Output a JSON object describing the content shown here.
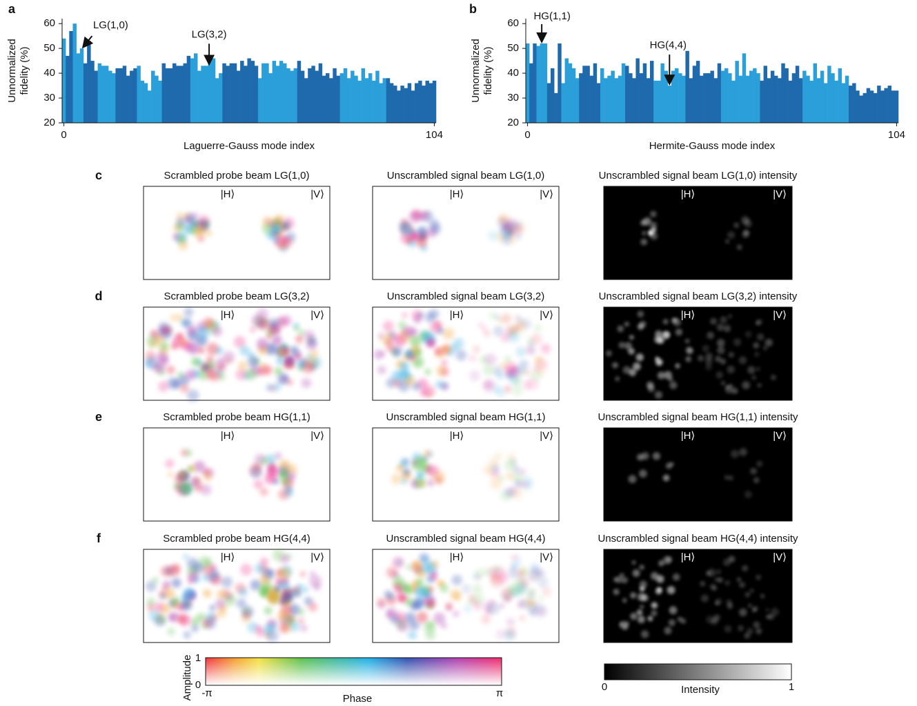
{
  "chart_data": [
    {
      "type": "bar",
      "panel": "a",
      "ylabel": [
        "Unnormalized",
        "fidelity (%)"
      ],
      "xlabel": "Laguerre-Gauss mode index",
      "x": [
        0,
        1,
        2,
        3,
        4,
        5,
        6,
        7,
        8,
        9,
        10,
        11,
        12,
        13,
        14,
        15,
        16,
        17,
        18,
        19,
        20,
        21,
        22,
        23,
        24,
        25,
        26,
        27,
        28,
        29,
        30,
        31,
        32,
        33,
        34,
        35,
        36,
        37,
        38,
        39,
        40,
        41,
        42,
        43,
        44,
        45,
        46,
        47,
        48,
        49,
        50,
        51,
        52,
        53,
        54,
        55,
        56,
        57,
        58,
        59,
        60,
        61,
        62,
        63,
        64,
        65,
        66,
        67,
        68,
        69,
        70,
        71,
        72,
        73,
        74,
        75,
        76,
        77,
        78,
        79,
        80,
        81,
        82,
        83,
        84,
        85,
        86,
        87,
        88,
        89,
        90,
        91,
        92,
        93,
        94,
        95,
        96,
        97,
        98,
        99,
        100,
        101,
        102,
        103,
        104
      ],
      "values": [
        54,
        47,
        57,
        60,
        48,
        50,
        44,
        53,
        45,
        41,
        44,
        43,
        43,
        41,
        40,
        42,
        42,
        43,
        39,
        41,
        42,
        43,
        37,
        36,
        33,
        41,
        39,
        37,
        44,
        42,
        42,
        44,
        43,
        43,
        44,
        47,
        46,
        48,
        41,
        43,
        43,
        45,
        46,
        38,
        40,
        44,
        43,
        44,
        44,
        41,
        45,
        43,
        46,
        45,
        43,
        38,
        44,
        44,
        40,
        45,
        43,
        45,
        44,
        42,
        41,
        42,
        45,
        41,
        38,
        42,
        43,
        41,
        44,
        39,
        40,
        38,
        42,
        39,
        40,
        42,
        38,
        41,
        39,
        37,
        42,
        38,
        40,
        37,
        41,
        36,
        38,
        38,
        36,
        35,
        33,
        35,
        34,
        36,
        33,
        36,
        37,
        35,
        37,
        36,
        37
      ],
      "colors": [
        "#2b9fda",
        "#1e6aac",
        "#1e6aac",
        "#2b9fda",
        "#2b9fda",
        "#2b9fda",
        "#1e6aac",
        "#1e6aac",
        "#1e6aac",
        "#1e6aac",
        "#2b9fda",
        "#2b9fda",
        "#2b9fda",
        "#2b9fda",
        "#2b9fda",
        "#1e6aac",
        "#1e6aac",
        "#1e6aac",
        "#1e6aac",
        "#1e6aac",
        "#1e6aac",
        "#2b9fda",
        "#2b9fda",
        "#2b9fda",
        "#2b9fda",
        "#2b9fda",
        "#2b9fda",
        "#2b9fda",
        "#1e6aac",
        "#1e6aac",
        "#1e6aac",
        "#1e6aac",
        "#1e6aac",
        "#1e6aac",
        "#1e6aac",
        "#1e6aac",
        "#2b9fda",
        "#2b9fda",
        "#2b9fda",
        "#2b9fda",
        "#2b9fda",
        "#2b9fda",
        "#2b9fda",
        "#2b9fda",
        "#2b9fda",
        "#1e6aac",
        "#1e6aac",
        "#1e6aac",
        "#1e6aac",
        "#1e6aac",
        "#1e6aac",
        "#1e6aac",
        "#1e6aac",
        "#1e6aac",
        "#1e6aac",
        "#2b9fda",
        "#2b9fda",
        "#2b9fda",
        "#2b9fda",
        "#2b9fda",
        "#2b9fda",
        "#2b9fda",
        "#2b9fda",
        "#2b9fda",
        "#2b9fda",
        "#2b9fda",
        "#1e6aac",
        "#1e6aac",
        "#1e6aac",
        "#1e6aac",
        "#1e6aac",
        "#1e6aac",
        "#1e6aac",
        "#1e6aac",
        "#1e6aac",
        "#1e6aac",
        "#1e6aac",
        "#1e6aac",
        "#2b9fda",
        "#2b9fda",
        "#2b9fda",
        "#2b9fda",
        "#2b9fda",
        "#2b9fda",
        "#2b9fda",
        "#2b9fda",
        "#2b9fda",
        "#2b9fda",
        "#2b9fda",
        "#2b9fda",
        "#2b9fda",
        "#1e6aac",
        "#1e6aac",
        "#1e6aac",
        "#1e6aac",
        "#1e6aac",
        "#1e6aac",
        "#1e6aac",
        "#1e6aac",
        "#1e6aac",
        "#1e6aac",
        "#1e6aac",
        "#1e6aac",
        "#1e6aac",
        "#1e6aac"
      ],
      "annotations": [
        {
          "text": "LG(1,0)",
          "x": 5
        },
        {
          "text": "LG(3,2)",
          "x": 40
        }
      ],
      "xlim": [
        -0.5,
        104.5
      ],
      "xticks": [
        0,
        104
      ],
      "ylim": [
        20,
        62
      ],
      "yticks": [
        20,
        30,
        40,
        50,
        60
      ]
    },
    {
      "type": "bar",
      "panel": "b",
      "ylabel": [
        "Unnormalized",
        "fidelity (%)"
      ],
      "xlabel": "Hermite-Gauss mode index",
      "x": [
        0,
        1,
        2,
        3,
        4,
        5,
        6,
        7,
        8,
        9,
        10,
        11,
        12,
        13,
        14,
        15,
        16,
        17,
        18,
        19,
        20,
        21,
        22,
        23,
        24,
        25,
        26,
        27,
        28,
        29,
        30,
        31,
        32,
        33,
        34,
        35,
        36,
        37,
        38,
        39,
        40,
        41,
        42,
        43,
        44,
        45,
        46,
        47,
        48,
        49,
        50,
        51,
        52,
        53,
        54,
        55,
        56,
        57,
        58,
        59,
        60,
        61,
        62,
        63,
        64,
        65,
        66,
        67,
        68,
        69,
        70,
        71,
        72,
        73,
        74,
        75,
        76,
        77,
        78,
        79,
        80,
        81,
        82,
        83,
        84,
        85,
        86,
        87,
        88,
        89,
        90,
        91,
        92,
        93,
        94,
        95,
        96,
        97,
        98,
        99,
        100,
        101,
        102,
        103,
        104
      ],
      "values": [
        52,
        44,
        52,
        51,
        52,
        52,
        36,
        42,
        32,
        52,
        36,
        46,
        44,
        42,
        38,
        40,
        43,
        43,
        39,
        44,
        36,
        42,
        38,
        39,
        41,
        38,
        39,
        44,
        43,
        40,
        38,
        46,
        40,
        44,
        38,
        45,
        37,
        37,
        44,
        41,
        35,
        41,
        42,
        40,
        39,
        49,
        38,
        43,
        45,
        39,
        40,
        40,
        41,
        38,
        44,
        41,
        42,
        40,
        37,
        45,
        39,
        48,
        39,
        41,
        42,
        40,
        37,
        43,
        38,
        41,
        39,
        38,
        44,
        42,
        37,
        40,
        43,
        38,
        41,
        39,
        37,
        44,
        38,
        41,
        36,
        43,
        40,
        37,
        42,
        36,
        39,
        35,
        36,
        33,
        31,
        32,
        34,
        33,
        32,
        35,
        33,
        34,
        35,
        33,
        33
      ],
      "colors": [
        "#2b9fda",
        "#1e6aac",
        "#1e6aac",
        "#2b9fda",
        "#2b9fda",
        "#2b9fda",
        "#1e6aac",
        "#1e6aac",
        "#1e6aac",
        "#1e6aac",
        "#2b9fda",
        "#2b9fda",
        "#2b9fda",
        "#2b9fda",
        "#2b9fda",
        "#1e6aac",
        "#1e6aac",
        "#1e6aac",
        "#1e6aac",
        "#1e6aac",
        "#1e6aac",
        "#2b9fda",
        "#2b9fda",
        "#2b9fda",
        "#2b9fda",
        "#2b9fda",
        "#2b9fda",
        "#2b9fda",
        "#1e6aac",
        "#1e6aac",
        "#1e6aac",
        "#1e6aac",
        "#1e6aac",
        "#1e6aac",
        "#1e6aac",
        "#1e6aac",
        "#2b9fda",
        "#2b9fda",
        "#2b9fda",
        "#2b9fda",
        "#2b9fda",
        "#2b9fda",
        "#2b9fda",
        "#2b9fda",
        "#2b9fda",
        "#1e6aac",
        "#1e6aac",
        "#1e6aac",
        "#1e6aac",
        "#1e6aac",
        "#1e6aac",
        "#1e6aac",
        "#1e6aac",
        "#1e6aac",
        "#1e6aac",
        "#2b9fda",
        "#2b9fda",
        "#2b9fda",
        "#2b9fda",
        "#2b9fda",
        "#2b9fda",
        "#2b9fda",
        "#2b9fda",
        "#2b9fda",
        "#2b9fda",
        "#2b9fda",
        "#1e6aac",
        "#1e6aac",
        "#1e6aac",
        "#1e6aac",
        "#1e6aac",
        "#1e6aac",
        "#1e6aac",
        "#1e6aac",
        "#1e6aac",
        "#1e6aac",
        "#1e6aac",
        "#1e6aac",
        "#2b9fda",
        "#2b9fda",
        "#2b9fda",
        "#2b9fda",
        "#2b9fda",
        "#2b9fda",
        "#2b9fda",
        "#2b9fda",
        "#2b9fda",
        "#2b9fda",
        "#2b9fda",
        "#2b9fda",
        "#2b9fda",
        "#1e6aac",
        "#1e6aac",
        "#1e6aac",
        "#1e6aac",
        "#1e6aac",
        "#1e6aac",
        "#1e6aac",
        "#1e6aac",
        "#1e6aac",
        "#1e6aac",
        "#1e6aac",
        "#1e6aac",
        "#1e6aac",
        "#1e6aac"
      ],
      "annotations": [
        {
          "text": "HG(1,1)",
          "x": 4
        },
        {
          "text": "HG(4,4)",
          "x": 40
        }
      ],
      "xlim": [
        -0.5,
        104.5
      ],
      "xticks": [
        0,
        104
      ],
      "ylim": [
        20,
        62
      ],
      "yticks": [
        20,
        30,
        40,
        50,
        60
      ]
    }
  ],
  "rows": [
    {
      "label": "c",
      "titles": [
        "Scrambled probe beam LG(1,0)",
        "Unscrambled signal beam LG(1,0)",
        "Unscrambled signal beam LG(1,0) intensity"
      ]
    },
    {
      "label": "d",
      "titles": [
        "Scrambled probe beam LG(3,2)",
        "Unscrambled signal beam LG(3,2)",
        "Unscrambled signal beam LG(3,2) intensity"
      ]
    },
    {
      "label": "e",
      "titles": [
        "Scrambled probe beam HG(1,1)",
        "Unscrambled signal beam HG(1,1)",
        "Unscrambled signal beam HG(1,1) intensity"
      ]
    },
    {
      "label": "f",
      "titles": [
        "Scrambled probe beam HG(4,4)",
        "Unscrambled signal beam HG(4,4)",
        "Unscrambled signal beam HG(4,4) intensity"
      ]
    }
  ],
  "polarizations": [
    "|H⟩",
    "|V⟩"
  ],
  "phase_colorbar": {
    "ylabel": "Amplitude",
    "yticks": [
      "1",
      "0"
    ],
    "xlabel": "Phase",
    "xticks": [
      "-π",
      "π"
    ]
  },
  "intensity_colorbar": {
    "label": "Intensity",
    "ticks": [
      "0",
      "1"
    ]
  }
}
